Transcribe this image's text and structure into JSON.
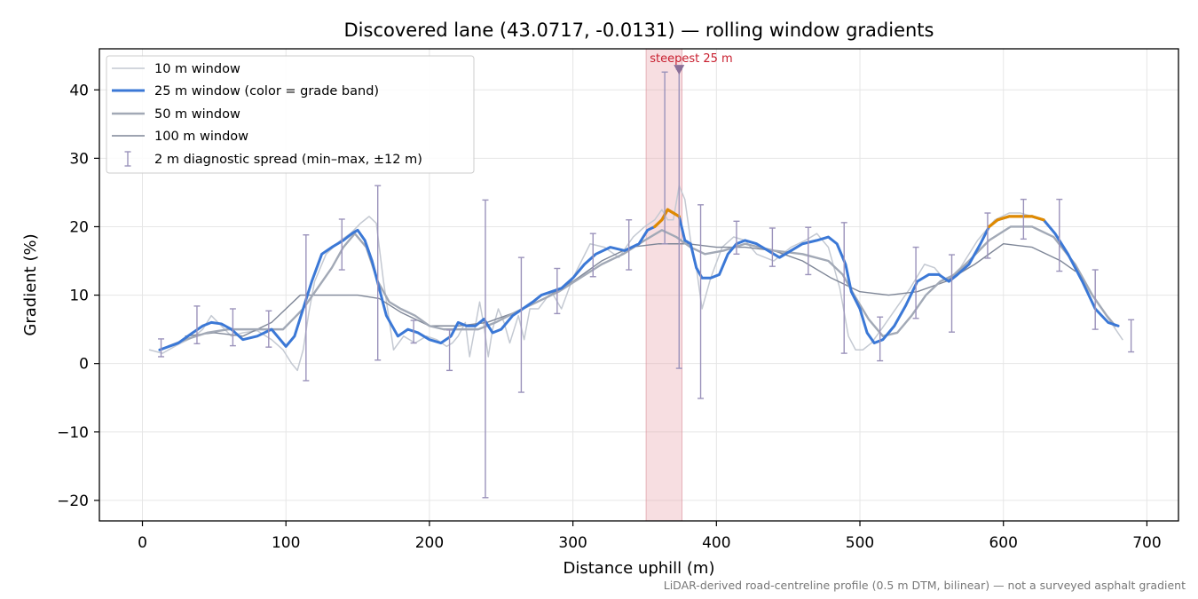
{
  "chart_data": {
    "type": "line",
    "title": "Discovered lane (43.0717, -0.0131) — rolling window gradients",
    "xlabel": "Distance uphill (m)",
    "ylabel": "Gradient (%)",
    "xlim": [
      -30,
      722
    ],
    "ylim": [
      -23,
      46
    ],
    "x_ticks": [
      0,
      100,
      200,
      300,
      400,
      500,
      600,
      700
    ],
    "y_ticks": [
      -20,
      -10,
      0,
      10,
      20,
      30,
      40
    ],
    "x_tick_labels": [
      "0",
      "100",
      "200",
      "300",
      "400",
      "500",
      "600",
      "700"
    ],
    "y_tick_labels": [
      "−20",
      "−10",
      "0",
      "10",
      "20",
      "30",
      "40"
    ],
    "grid": true,
    "legend_position": "upper-left",
    "footnote": "LiDAR-derived road-centreline profile (0.5 m DTM, bilinear) — not a surveyed asphalt gradient",
    "highlight": {
      "x_from": 351,
      "x_to": 376,
      "label": "steepest 25 m",
      "marker_x": 374,
      "marker_y": 43,
      "color": "#e8a0a8"
    },
    "series": [
      {
        "name": "10 m window",
        "color": "#c4c9d2",
        "x": [
          5,
          14,
          25,
          35,
          42,
          48,
          55,
          62,
          70,
          80,
          90,
          98,
          104,
          108,
          112,
          116,
          120,
          128,
          138,
          145,
          152,
          158,
          163,
          168,
          175,
          182,
          190,
          198,
          205,
          212,
          216,
          220,
          225,
          228,
          232,
          235,
          238,
          241,
          244,
          248,
          252,
          256,
          262,
          266,
          270,
          276,
          285,
          292,
          300,
          312,
          322,
          332,
          342,
          350,
          357,
          362,
          366,
          370,
          374,
          378,
          382,
          386,
          390,
          396,
          404,
          412,
          420,
          428,
          440,
          452,
          462,
          470,
          478,
          486,
          492,
          497,
          502,
          508,
          515,
          525,
          535,
          545,
          552,
          560,
          570,
          582,
          594,
          604,
          612,
          620,
          628,
          636,
          645,
          655,
          665,
          675,
          683
        ],
        "y": [
          2.0,
          1.5,
          2.8,
          3.8,
          5.0,
          7.0,
          5.5,
          4.0,
          4.5,
          4.8,
          3.5,
          2.0,
          0.0,
          -1.0,
          2.0,
          7.5,
          12.0,
          16.0,
          18.0,
          19.0,
          20.5,
          21.5,
          20.5,
          12.0,
          2.0,
          4.0,
          3.0,
          4.0,
          3.5,
          2.5,
          3.0,
          4.0,
          6.0,
          1.0,
          5.5,
          9.0,
          5.5,
          1.0,
          5.0,
          8.0,
          6.0,
          3.0,
          7.0,
          3.5,
          8.0,
          8.0,
          10.5,
          8.0,
          12.5,
          17.5,
          17.0,
          15.5,
          18.5,
          20.0,
          21.0,
          22.5,
          21.0,
          21.0,
          26.0,
          24.0,
          18.0,
          14.0,
          8.0,
          12.5,
          17.0,
          18.5,
          18.0,
          16.0,
          15.0,
          17.0,
          18.0,
          19.0,
          17.0,
          11.0,
          4.0,
          2.0,
          2.0,
          3.0,
          5.0,
          8.0,
          11.0,
          14.5,
          14.0,
          12.0,
          14.0,
          18.0,
          21.0,
          22.0,
          22.0,
          21.5,
          21.0,
          19.0,
          16.0,
          12.0,
          9.0,
          6.0,
          3.5
        ]
      },
      {
        "name": "25 m window (color = grade band)",
        "color": "#3b78d6",
        "band_color": "#e08a00",
        "band_threshold": 20,
        "x": [
          12,
          25,
          35,
          42,
          48,
          55,
          62,
          70,
          80,
          90,
          100,
          106,
          112,
          118,
          125,
          132,
          140,
          146,
          150,
          155,
          160,
          165,
          170,
          178,
          185,
          192,
          200,
          208,
          215,
          220,
          226,
          232,
          238,
          244,
          250,
          258,
          265,
          272,
          278,
          285,
          292,
          300,
          308,
          316,
          326,
          336,
          346,
          352,
          357,
          362,
          366,
          370,
          374,
          378,
          382,
          386,
          390,
          396,
          402,
          408,
          414,
          420,
          428,
          436,
          444,
          452,
          460,
          470,
          478,
          484,
          490,
          494,
          500,
          505,
          510,
          516,
          524,
          532,
          540,
          548,
          555,
          562,
          568,
          576,
          584,
          590,
          596,
          604,
          612,
          620,
          628,
          636,
          645,
          655,
          664,
          673,
          680
        ],
        "y": [
          2.0,
          3.0,
          4.5,
          5.5,
          6.0,
          5.8,
          5.0,
          3.5,
          4.0,
          5.0,
          2.5,
          4.0,
          8.0,
          12.0,
          16.0,
          17.0,
          18.0,
          19.0,
          19.5,
          18.0,
          15.0,
          11.0,
          7.0,
          4.0,
          5.0,
          4.5,
          3.5,
          3.0,
          4.0,
          6.0,
          5.5,
          5.5,
          6.5,
          4.5,
          5.0,
          7.0,
          8.0,
          9.0,
          10.0,
          10.5,
          11.0,
          12.5,
          14.5,
          16.0,
          17.0,
          16.5,
          17.5,
          19.5,
          20.0,
          21.0,
          22.5,
          22.0,
          21.5,
          18.0,
          17.5,
          14.0,
          12.5,
          12.5,
          13.0,
          16.0,
          17.5,
          18.0,
          17.5,
          16.5,
          15.5,
          16.5,
          17.5,
          18.0,
          18.5,
          17.5,
          14.5,
          10.5,
          8.0,
          4.5,
          3.0,
          3.5,
          5.5,
          8.5,
          12.0,
          13.0,
          13.0,
          12.0,
          13.0,
          14.5,
          17.5,
          20.0,
          21.0,
          21.5,
          21.5,
          21.5,
          21.0,
          19.0,
          16.0,
          12.0,
          8.0,
          6.0,
          5.5
        ]
      },
      {
        "name": "50 m window",
        "color": "#a2a9b6",
        "x": [
          18,
          30,
          45,
          60,
          75,
          88,
          98,
          105,
          112,
          122,
          132,
          140,
          148,
          156,
          164,
          172,
          180,
          190,
          200,
          210,
          222,
          234,
          246,
          260,
          275,
          290,
          305,
          320,
          335,
          350,
          362,
          372,
          382,
          392,
          405,
          420,
          440,
          460,
          478,
          488,
          496,
          506,
          516,
          526,
          536,
          546,
          556,
          566,
          576,
          590,
          605,
          620,
          635,
          650,
          662,
          672,
          678
        ],
        "y": [
          2.5,
          3.5,
          4.5,
          5.0,
          5.0,
          5.0,
          5.0,
          6.5,
          8.0,
          11.0,
          14.0,
          17.0,
          19.0,
          17.0,
          12.0,
          9.0,
          8.0,
          7.0,
          5.5,
          5.0,
          5.0,
          5.0,
          6.0,
          7.5,
          9.0,
          10.5,
          12.5,
          14.5,
          16.0,
          18.0,
          19.5,
          18.5,
          17.0,
          16.0,
          16.5,
          17.5,
          16.5,
          16.0,
          15.0,
          13.0,
          10.0,
          6.5,
          4.0,
          4.5,
          7.0,
          10.0,
          12.0,
          13.0,
          15.0,
          18.0,
          20.0,
          20.0,
          18.5,
          14.5,
          10.0,
          7.0,
          5.5
        ]
      },
      {
        "name": "100 m window",
        "color": "#7e8697",
        "x": [
          30,
          50,
          70,
          90,
          100,
          110,
          120,
          135,
          150,
          165,
          180,
          200,
          220,
          240,
          260,
          280,
          300,
          320,
          340,
          360,
          380,
          400,
          420,
          440,
          460,
          480,
          500,
          520,
          540,
          560,
          580,
          600,
          620,
          640,
          650
        ],
        "y": [
          4.0,
          4.5,
          4.0,
          6.0,
          8.0,
          10.0,
          10.0,
          10.0,
          10.0,
          9.5,
          7.5,
          5.5,
          5.5,
          6.0,
          7.5,
          9.5,
          12.0,
          15.0,
          17.0,
          17.5,
          17.5,
          17.0,
          17.0,
          16.5,
          15.0,
          12.5,
          10.5,
          10.0,
          10.5,
          12.0,
          14.5,
          17.5,
          17.0,
          15.0,
          13.5
        ]
      }
    ],
    "error_bars": {
      "name": "2 m diagnostic spread (min–max, ±12 m)",
      "color": "#9b93bb",
      "points": [
        {
          "x": 13,
          "low": 1.0,
          "high": 3.6
        },
        {
          "x": 38,
          "low": 2.9,
          "high": 8.4
        },
        {
          "x": 63,
          "low": 2.6,
          "high": 8.0
        },
        {
          "x": 88,
          "low": 2.4,
          "high": 7.7
        },
        {
          "x": 114,
          "low": -2.5,
          "high": 18.8
        },
        {
          "x": 139,
          "low": 13.7,
          "high": 21.1
        },
        {
          "x": 164,
          "low": 0.5,
          "high": 26.0
        },
        {
          "x": 189,
          "low": 3.0,
          "high": 6.3
        },
        {
          "x": 214,
          "low": -1.0,
          "high": 4.9
        },
        {
          "x": 239,
          "low": -19.6,
          "high": 23.9
        },
        {
          "x": 264,
          "low": -4.2,
          "high": 15.5
        },
        {
          "x": 289,
          "low": 7.3,
          "high": 13.9
        },
        {
          "x": 314,
          "low": 12.7,
          "high": 19.0
        },
        {
          "x": 339,
          "low": 13.7,
          "high": 21.0
        },
        {
          "x": 364,
          "low": 17.5,
          "high": 42.6
        },
        {
          "x": 374,
          "low": -0.7,
          "high": 43.0
        },
        {
          "x": 389,
          "low": -5.1,
          "high": 23.2
        },
        {
          "x": 414,
          "low": 16.0,
          "high": 20.8
        },
        {
          "x": 439,
          "low": 14.2,
          "high": 19.8
        },
        {
          "x": 464,
          "low": 13.0,
          "high": 19.9
        },
        {
          "x": 489,
          "low": 1.5,
          "high": 20.6
        },
        {
          "x": 514,
          "low": 0.4,
          "high": 6.8
        },
        {
          "x": 539,
          "low": 6.6,
          "high": 17.0
        },
        {
          "x": 564,
          "low": 4.6,
          "high": 15.9
        },
        {
          "x": 589,
          "low": 15.4,
          "high": 22.0
        },
        {
          "x": 614,
          "low": 18.2,
          "high": 24.0
        },
        {
          "x": 639,
          "low": 13.5,
          "high": 24.0
        },
        {
          "x": 664,
          "low": 5.0,
          "high": 13.7
        },
        {
          "x": 689,
          "low": 1.7,
          "high": 6.4
        }
      ]
    }
  }
}
